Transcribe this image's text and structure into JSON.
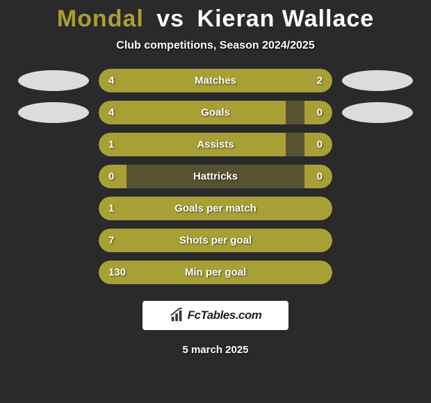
{
  "colors": {
    "background": "#2a2a2a",
    "bar_dark": "#575330",
    "bar_fill": "#a8a034",
    "text_white": "#ffffff",
    "ellipse": "#dcdcdc"
  },
  "header": {
    "player1": "Mondal",
    "vs": "vs",
    "player2": "Kieran Wallace",
    "subtitle": "Club competitions, Season 2024/2025"
  },
  "rows": [
    {
      "label": "Matches",
      "left": "4",
      "right": "2",
      "left_pct": 66.6,
      "right_pct": 33.4,
      "show_ellipses": true
    },
    {
      "label": "Goals",
      "left": "4",
      "right": "0",
      "left_pct": 80,
      "right_pct": 12,
      "show_ellipses": true
    },
    {
      "label": "Assists",
      "left": "1",
      "right": "0",
      "left_pct": 80,
      "right_pct": 12,
      "show_ellipses": false
    },
    {
      "label": "Hattricks",
      "left": "0",
      "right": "0",
      "left_pct": 12,
      "right_pct": 12,
      "show_ellipses": false
    },
    {
      "label": "Goals per match",
      "left": "1",
      "right": "",
      "left_pct": 100,
      "right_pct": 0,
      "show_ellipses": false
    },
    {
      "label": "Shots per goal",
      "left": "7",
      "right": "",
      "left_pct": 100,
      "right_pct": 0,
      "show_ellipses": false
    },
    {
      "label": "Min per goal",
      "left": "130",
      "right": "",
      "left_pct": 100,
      "right_pct": 0,
      "show_ellipses": false
    }
  ],
  "footer": {
    "logo_text": "FcTables.com",
    "date": "5 march 2025"
  }
}
